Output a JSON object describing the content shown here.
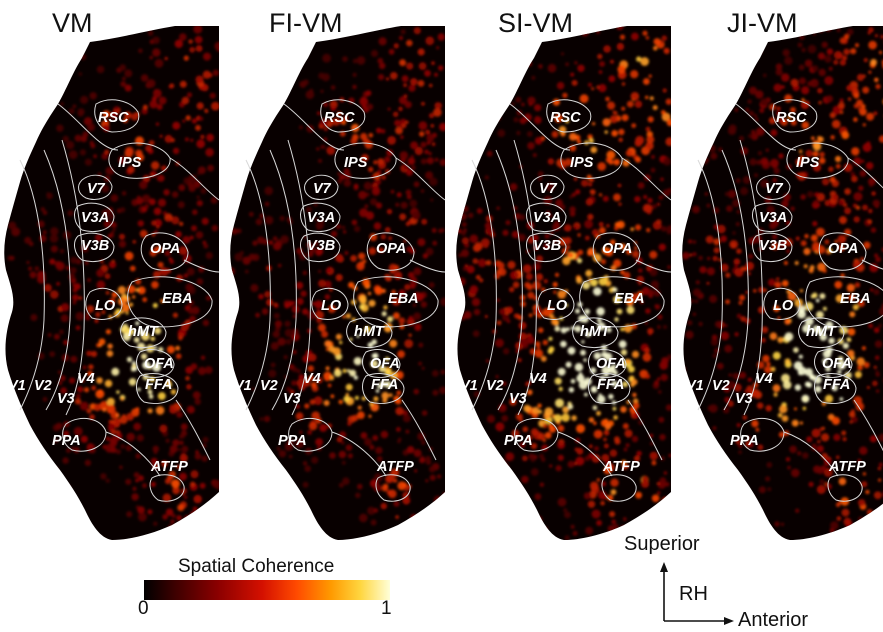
{
  "panels": [
    {
      "title": "VM",
      "intensity": 0.55
    },
    {
      "title": "FI-VM",
      "intensity": 0.55
    },
    {
      "title": "SI-VM",
      "intensity": 0.85
    },
    {
      "title": "JI-VM",
      "intensity": 0.75
    }
  ],
  "roi_labels": [
    "RSC",
    "IPS",
    "V7",
    "V3A",
    "V3B",
    "OPA",
    "LO",
    "EBA",
    "hMT",
    "OFA",
    "V1",
    "V2",
    "V4",
    "FFA",
    "V3",
    "PPA",
    "ATFP"
  ],
  "colorbar": {
    "title": "Spatial Coherence",
    "min_label": "0",
    "max_label": "1",
    "colors": [
      "#000000",
      "#8b0000",
      "#ff4a00",
      "#ffd640",
      "#ffffd8"
    ]
  },
  "orientation": {
    "superior": "Superior",
    "hemisphere": "RH",
    "anterior": "Anterior"
  }
}
